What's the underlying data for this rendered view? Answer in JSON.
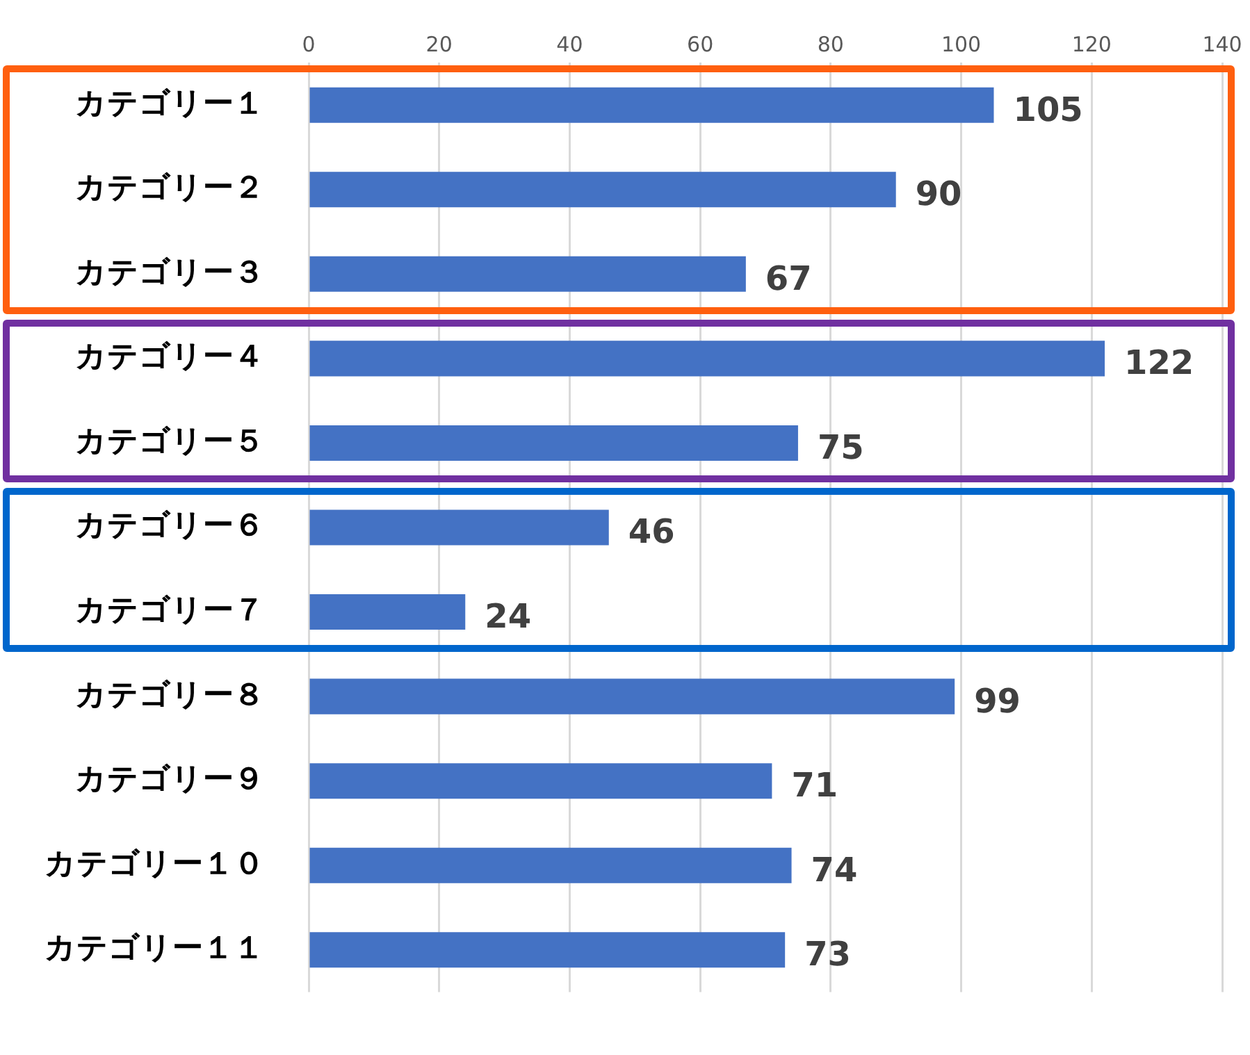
{
  "chart_data": {
    "type": "bar",
    "orientation": "horizontal",
    "categories": [
      "カテゴリー１",
      "カテゴリー２",
      "カテゴリー３",
      "カテゴリー４",
      "カテゴリー５",
      "カテゴリー６",
      "カテゴリー７",
      "カテゴリー８",
      "カテゴリー９",
      "カテゴリー１０",
      "カテゴリー１１"
    ],
    "values": [
      105,
      90,
      67,
      122,
      75,
      46,
      24,
      99,
      71,
      74,
      73
    ],
    "color": "#4472c4",
    "xlim": [
      0,
      140
    ],
    "xticks": [
      0,
      20,
      40,
      60,
      80,
      100,
      120,
      140
    ],
    "grid": "x",
    "data_labels": true
  }
}
